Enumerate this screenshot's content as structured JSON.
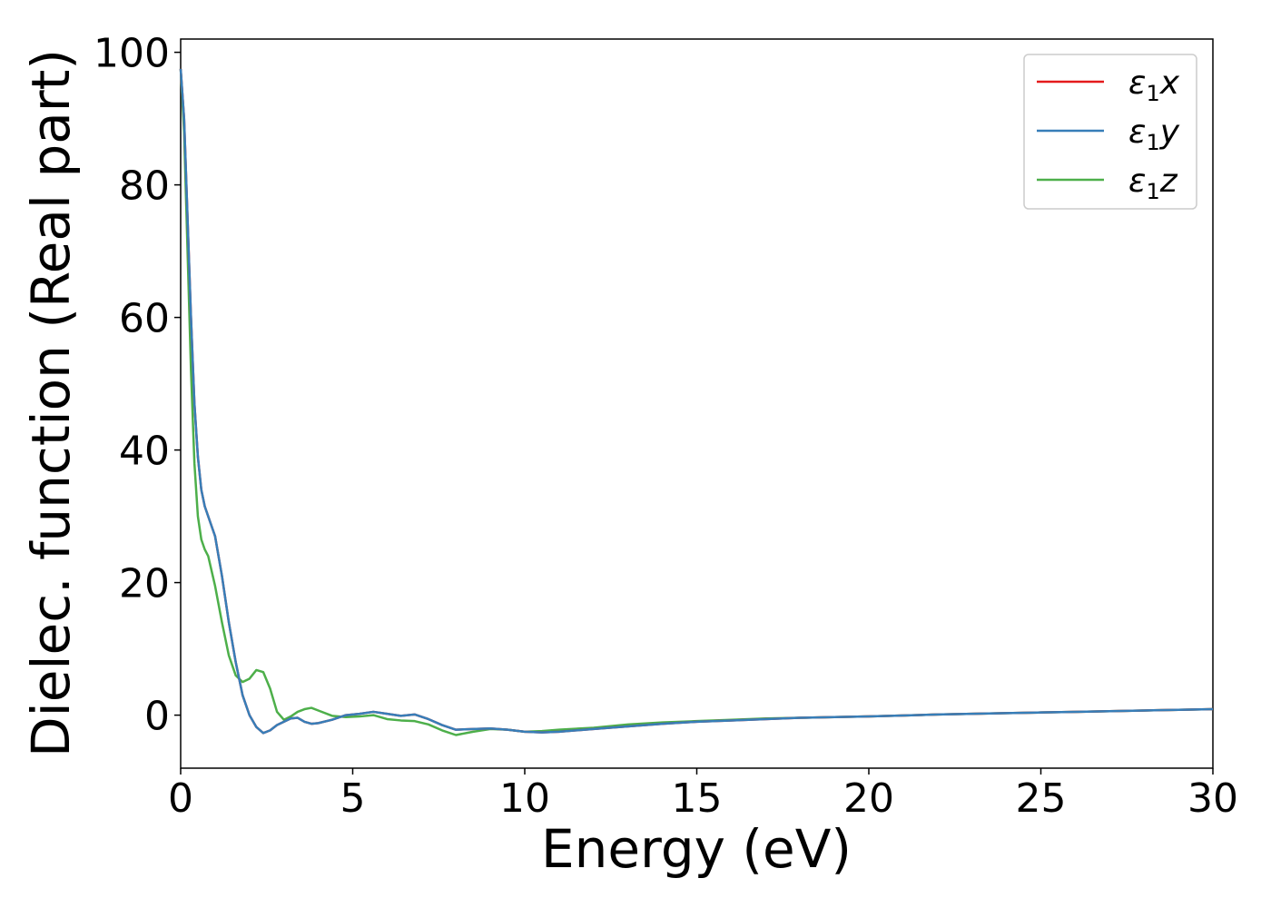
{
  "chart_data": {
    "type": "line",
    "xlabel": "Energy (eV)",
    "ylabel": "Dielec. function (Real part)",
    "xlim": [
      0,
      30
    ],
    "ylim": [
      -8,
      102
    ],
    "xticks": [
      0,
      5,
      10,
      15,
      20,
      25,
      30
    ],
    "yticks": [
      0,
      20,
      40,
      60,
      80,
      100
    ],
    "grid": false,
    "legend_position": "top-right",
    "series": [
      {
        "name": "ε1x",
        "legend_base": "ε",
        "legend_sub": "1",
        "legend_suffix": "x",
        "color": "#e41a1c",
        "x": [
          0,
          0.1,
          0.2,
          0.3,
          0.4,
          0.5,
          0.6,
          0.7,
          0.8,
          1.0,
          1.2,
          1.4,
          1.6,
          1.8,
          2.0,
          2.2,
          2.4,
          2.6,
          2.8,
          3.0,
          3.2,
          3.4,
          3.6,
          3.8,
          4.0,
          4.4,
          4.8,
          5.2,
          5.6,
          6.0,
          6.4,
          6.8,
          7.2,
          7.6,
          8.0,
          8.5,
          9.0,
          9.5,
          10.0,
          10.5,
          11.0,
          12.0,
          13.0,
          14.0,
          15.0,
          16.0,
          17.0,
          18.0,
          19.0,
          20.0,
          21.0,
          22.0,
          23.0,
          24.0,
          25.0,
          26.0,
          27.0,
          28.0,
          29.0,
          30.0
        ],
        "y": [
          97.5,
          90,
          75,
          60,
          47,
          39,
          34,
          31.5,
          30,
          27,
          21,
          14,
          8,
          3,
          0,
          -1.8,
          -2.7,
          -2.3,
          -1.5,
          -1.0,
          -0.5,
          -0.4,
          -1.0,
          -1.3,
          -1.2,
          -0.7,
          0.0,
          0.2,
          0.5,
          0.2,
          -0.1,
          0.1,
          -0.6,
          -1.5,
          -2.2,
          -2.1,
          -2.0,
          -2.2,
          -2.5,
          -2.6,
          -2.5,
          -2.1,
          -1.7,
          -1.3,
          -1.0,
          -0.8,
          -0.6,
          -0.4,
          -0.3,
          -0.2,
          -0.05,
          0.1,
          0.2,
          0.3,
          0.4,
          0.5,
          0.6,
          0.7,
          0.8,
          0.9
        ]
      },
      {
        "name": "ε1y",
        "legend_base": "ε",
        "legend_sub": "1",
        "legend_suffix": "y",
        "color": "#377eb8",
        "x": [
          0,
          0.1,
          0.2,
          0.3,
          0.4,
          0.5,
          0.6,
          0.7,
          0.8,
          1.0,
          1.2,
          1.4,
          1.6,
          1.8,
          2.0,
          2.2,
          2.4,
          2.6,
          2.8,
          3.0,
          3.2,
          3.4,
          3.6,
          3.8,
          4.0,
          4.4,
          4.8,
          5.2,
          5.6,
          6.0,
          6.4,
          6.8,
          7.2,
          7.6,
          8.0,
          8.5,
          9.0,
          9.5,
          10.0,
          10.5,
          11.0,
          12.0,
          13.0,
          14.0,
          15.0,
          16.0,
          17.0,
          18.0,
          19.0,
          20.0,
          21.0,
          22.0,
          23.0,
          24.0,
          25.0,
          26.0,
          27.0,
          28.0,
          29.0,
          30.0
        ],
        "y": [
          97.5,
          90,
          75,
          60,
          47,
          39,
          34,
          31.5,
          30,
          27,
          21,
          14,
          8,
          3,
          0,
          -1.8,
          -2.7,
          -2.3,
          -1.5,
          -1.0,
          -0.5,
          -0.4,
          -1.0,
          -1.3,
          -1.2,
          -0.7,
          0.0,
          0.2,
          0.5,
          0.2,
          -0.1,
          0.1,
          -0.6,
          -1.5,
          -2.2,
          -2.1,
          -2.0,
          -2.2,
          -2.5,
          -2.6,
          -2.5,
          -2.1,
          -1.7,
          -1.3,
          -1.0,
          -0.8,
          -0.6,
          -0.4,
          -0.3,
          -0.2,
          -0.05,
          0.1,
          0.2,
          0.3,
          0.4,
          0.5,
          0.6,
          0.7,
          0.8,
          0.9
        ]
      },
      {
        "name": "ε1z",
        "legend_base": "ε",
        "legend_sub": "1",
        "legend_suffix": "z",
        "color": "#4daf4a",
        "x": [
          0,
          0.1,
          0.2,
          0.3,
          0.4,
          0.5,
          0.6,
          0.7,
          0.8,
          1.0,
          1.2,
          1.4,
          1.6,
          1.8,
          2.0,
          2.2,
          2.4,
          2.6,
          2.8,
          3.0,
          3.2,
          3.4,
          3.6,
          3.8,
          4.0,
          4.4,
          4.8,
          5.2,
          5.6,
          6.0,
          6.4,
          6.8,
          7.2,
          7.6,
          8.0,
          8.5,
          9.0,
          9.5,
          10.0,
          10.5,
          11.0,
          12.0,
          13.0,
          14.0,
          15.0,
          16.0,
          17.0,
          18.0,
          19.0,
          20.0,
          21.0,
          22.0,
          23.0,
          24.0,
          25.0,
          26.0,
          27.0,
          28.0,
          29.0,
          30.0
        ],
        "y": [
          97.5,
          88,
          70,
          52,
          38,
          30,
          26.5,
          25,
          24,
          19.5,
          14,
          9,
          6,
          5,
          5.5,
          6.8,
          6.5,
          4,
          0.5,
          -0.7,
          -0.2,
          0.5,
          0.9,
          1.1,
          0.7,
          -0.1,
          -0.3,
          -0.2,
          0.0,
          -0.6,
          -0.8,
          -0.9,
          -1.4,
          -2.3,
          -3.0,
          -2.5,
          -2.1,
          -2.2,
          -2.5,
          -2.4,
          -2.2,
          -1.9,
          -1.4,
          -1.1,
          -0.9,
          -0.7,
          -0.5,
          -0.4,
          -0.3,
          -0.2,
          -0.05,
          0.1,
          0.2,
          0.3,
          0.4,
          0.5,
          0.6,
          0.7,
          0.8,
          0.9
        ]
      }
    ]
  }
}
